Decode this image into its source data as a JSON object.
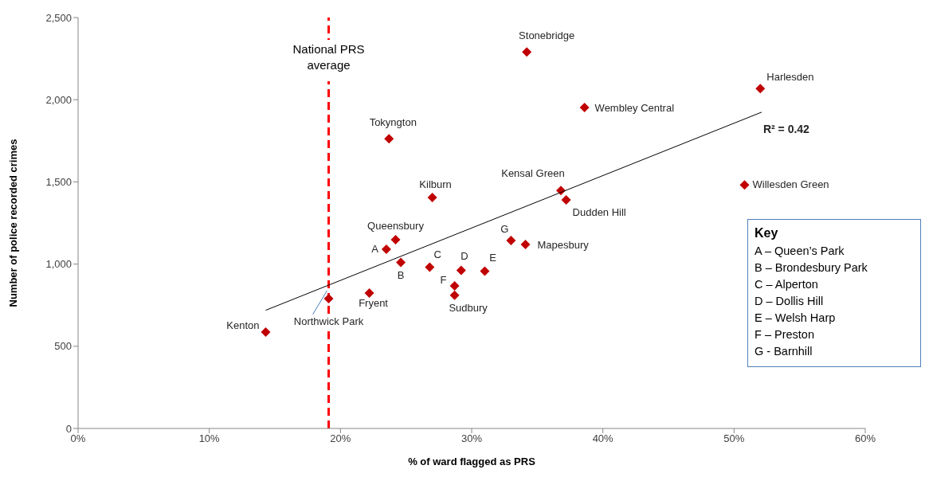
{
  "chart_data": {
    "type": "scatter",
    "xlabel": "% of ward flagged as PRS",
    "ylabel": "Number of police recorded crimes",
    "xlim": [
      0,
      60
    ],
    "xticks": [
      {
        "value": 0,
        "label": "0%"
      },
      {
        "value": 10,
        "label": "10%"
      },
      {
        "value": 20,
        "label": "20%"
      },
      {
        "value": 30,
        "label": "30%"
      },
      {
        "value": 40,
        "label": "40%"
      },
      {
        "value": 50,
        "label": "50%"
      },
      {
        "value": 60,
        "label": "60%"
      }
    ],
    "ylim": [
      0,
      2500
    ],
    "yticks": [
      0,
      500,
      {
        "value": 1000,
        "label": "1,000"
      },
      {
        "value": 1500,
        "label": "1,500"
      },
      {
        "value": 2000,
        "label": "2,000"
      },
      {
        "value": 2500,
        "label": "2,500"
      }
    ],
    "marker": "diamond",
    "series": [
      {
        "color": "#c00000",
        "x": [
          14.3,
          19.1,
          22.2,
          23.5,
          24.2,
          24.6,
          26.8,
          27.0,
          23.7,
          29.2,
          28.7,
          28.7,
          31.0,
          33.0,
          34.1,
          34.2,
          36.8,
          37.2,
          38.6,
          50.8,
          52.0
        ],
        "values": [
          586,
          790,
          824,
          1090,
          1148,
          1010,
          981,
          1405,
          1762,
          962,
          867,
          810,
          957,
          1143,
          1119,
          2290,
          1448,
          1390,
          1952,
          1481,
          2067
        ]
      },
      {
        "type": "line",
        "marker": "none",
        "color": "#000000",
        "x": [
          14.3,
          52.1
        ],
        "values": [
          719,
          1924
        ]
      }
    ],
    "ref_lines": [
      {
        "axis": "x",
        "value": 19.1,
        "label": "National PRS average",
        "color": "#ff0000",
        "line_style": "dashed"
      }
    ],
    "annotations": [
      {
        "text": "Kenton",
        "x": 14.3,
        "y": 586
      },
      {
        "text": "Northwick Park",
        "x": 19.1,
        "y": 790
      },
      {
        "text": "Fryent",
        "x": 22.2,
        "y": 824
      },
      {
        "text": "A",
        "x": 23.5,
        "y": 1090
      },
      {
        "text": "Queensbury",
        "x": 24.2,
        "y": 1148
      },
      {
        "text": "B",
        "x": 24.6,
        "y": 1010
      },
      {
        "text": "C",
        "x": 26.8,
        "y": 981
      },
      {
        "text": "Kilburn",
        "x": 27.0,
        "y": 1405
      },
      {
        "text": "Tokyngton",
        "x": 23.7,
        "y": 1762
      },
      {
        "text": "D",
        "x": 29.2,
        "y": 962
      },
      {
        "text": "F",
        "x": 28.7,
        "y": 867
      },
      {
        "text": "Sudbury",
        "x": 28.7,
        "y": 810
      },
      {
        "text": "E",
        "x": 31.0,
        "y": 957
      },
      {
        "text": "G",
        "x": 33.0,
        "y": 1143
      },
      {
        "text": "Mapesbury",
        "x": 34.1,
        "y": 1119
      },
      {
        "text": "Stonebridge",
        "x": 34.2,
        "y": 2290
      },
      {
        "text": "Kensal Green",
        "x": 36.8,
        "y": 1448
      },
      {
        "text": "Dudden Hill",
        "x": 37.2,
        "y": 1390
      },
      {
        "text": "Wembley Central",
        "x": 38.6,
        "y": 1952
      },
      {
        "text": "Willesden Green",
        "x": 50.8,
        "y": 1481
      },
      {
        "text": "Harlesden",
        "x": 52.0,
        "y": 2067
      },
      "R² = 0.42",
      "Key",
      "A – Queen’s Park",
      "B – Brondesbury Park",
      "C – Alperton",
      "D – Dollis Hill",
      "E – Welsh Harp",
      "F – Preston",
      "G - Barnhill"
    ]
  }
}
